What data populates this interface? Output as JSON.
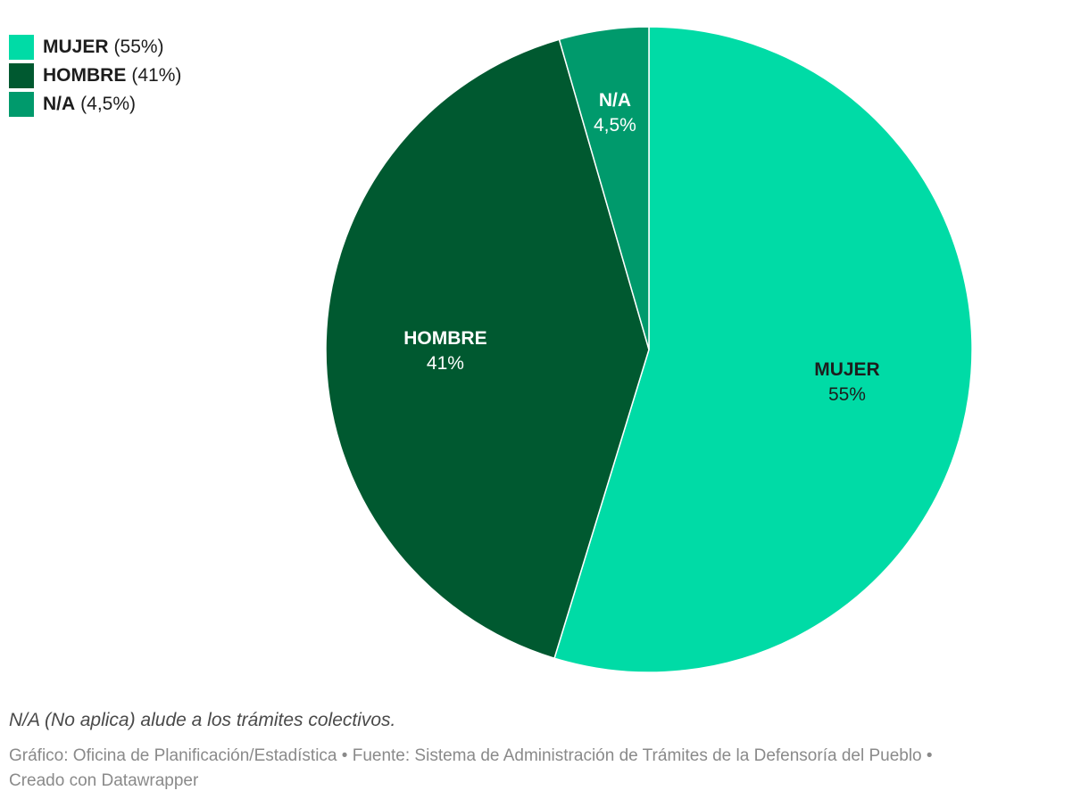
{
  "chart_data": {
    "type": "pie",
    "slices": [
      {
        "name": "MUJER",
        "value": 55,
        "value_label": "55%",
        "legend_value": "(55%)",
        "color": "#00dba6"
      },
      {
        "name": "HOMBRE",
        "value": 41,
        "value_label": "41%",
        "legend_value": "(41%)",
        "color": "#005930"
      },
      {
        "name": "N/A",
        "value": 4.5,
        "value_label": "4,5%",
        "legend_value": "(4,5%)",
        "color": "#009a6c"
      }
    ],
    "legend_placement": "top-left"
  },
  "note": "N/A (No aplica) alude a los trámites colectivos.",
  "credits": {
    "line1": "Gráfico: Oficina de Planificación/Estadística • Fuente: Sistema de Administración de Trámites de la Defensoría del Pueblo •",
    "line2": "Creado con Datawrapper"
  }
}
